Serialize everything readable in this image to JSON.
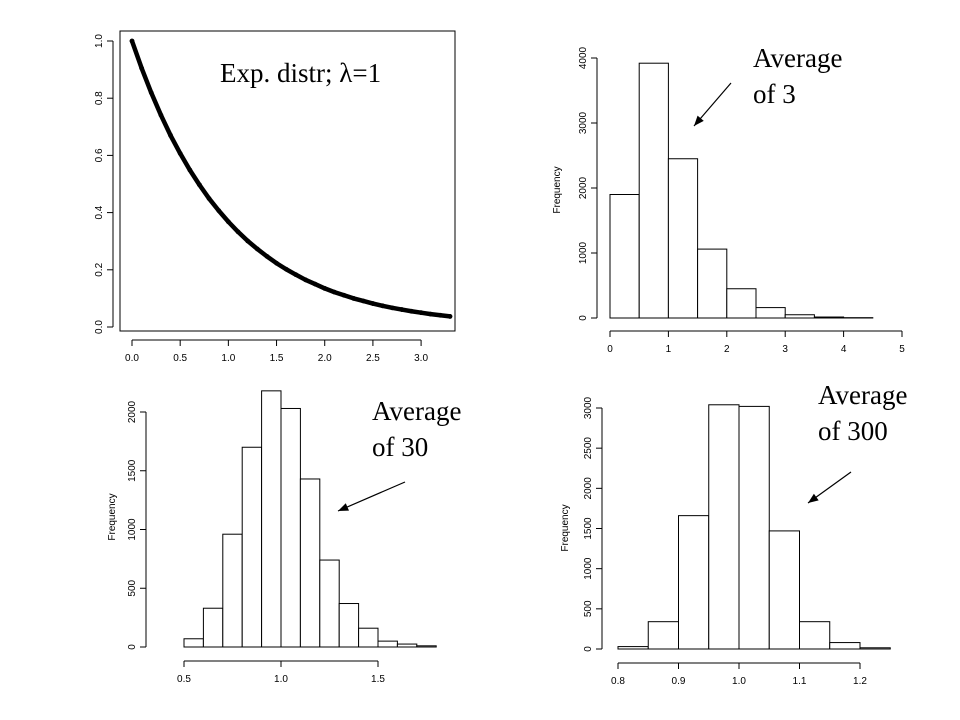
{
  "chart_data": [
    {
      "type": "line",
      "title": "Exp. distr; λ=1",
      "x": [
        0.0,
        0.1,
        0.2,
        0.3,
        0.4,
        0.5,
        0.6,
        0.7,
        0.8,
        0.9,
        1.0,
        1.1,
        1.2,
        1.3,
        1.4,
        1.5,
        1.6,
        1.7,
        1.8,
        1.9,
        2.0,
        2.1,
        2.2,
        2.3,
        2.4,
        2.5,
        2.6,
        2.7,
        2.8,
        2.9,
        3.0,
        3.1,
        3.2,
        3.3
      ],
      "y": [
        1.0,
        0.905,
        0.819,
        0.741,
        0.67,
        0.607,
        0.549,
        0.497,
        0.449,
        0.407,
        0.368,
        0.333,
        0.301,
        0.273,
        0.247,
        0.223,
        0.202,
        0.183,
        0.165,
        0.15,
        0.135,
        0.122,
        0.111,
        0.1,
        0.091,
        0.082,
        0.074,
        0.067,
        0.061,
        0.055,
        0.05,
        0.045,
        0.041,
        0.037
      ],
      "xlim": [
        -0.1,
        3.4
      ],
      "ylim": [
        0.0,
        1.0
      ],
      "xticks": [
        "0.0",
        "0.5",
        "1.0",
        "1.5",
        "2.0",
        "2.5",
        "3.0"
      ],
      "yticks": [
        "0.0",
        "0.2",
        "0.4",
        "0.6",
        "0.8",
        "1.0"
      ],
      "xlabel": "",
      "ylabel": "",
      "grid": false
    },
    {
      "type": "bar",
      "annotation": [
        "Average",
        "of 3"
      ],
      "ylabel": "Frequency",
      "bin_edges": [
        0,
        0.5,
        1.0,
        1.5,
        2.0,
        2.5,
        3.0,
        3.5,
        4.0,
        4.5
      ],
      "values": [
        1900,
        3920,
        2450,
        1060,
        450,
        160,
        50,
        15,
        5
      ],
      "xlim": [
        0,
        5
      ],
      "ylim": [
        0,
        4000
      ],
      "xticks": [
        "0",
        "1",
        "2",
        "3",
        "4",
        "5"
      ],
      "yticks": [
        "0",
        "1000",
        "2000",
        "3000",
        "4000"
      ],
      "grid": false
    },
    {
      "type": "bar",
      "annotation": [
        "Average",
        "of 30"
      ],
      "ylabel": "Frequency",
      "bin_edges": [
        0.5,
        0.6,
        0.7,
        0.8,
        0.9,
        1.0,
        1.1,
        1.2,
        1.3,
        1.4,
        1.5,
        1.6,
        1.7,
        1.8
      ],
      "values": [
        70,
        330,
        960,
        1700,
        2180,
        2030,
        1430,
        740,
        370,
        160,
        50,
        25,
        10
      ],
      "xlim": [
        0.5,
        1.5
      ],
      "ylim": [
        0,
        2000
      ],
      "xticks": [
        "0.5",
        "1.0",
        "1.5"
      ],
      "yticks": [
        "0",
        "500",
        "1000",
        "1500",
        "2000"
      ],
      "grid": false
    },
    {
      "type": "bar",
      "annotation": [
        "Average",
        "of 300"
      ],
      "ylabel": "Frequency",
      "bin_edges": [
        0.8,
        0.85,
        0.9,
        0.95,
        1.0,
        1.05,
        1.1,
        1.15,
        1.2,
        1.25
      ],
      "values": [
        30,
        340,
        1660,
        3040,
        3020,
        1470,
        340,
        80,
        15
      ],
      "xlim": [
        0.8,
        1.2
      ],
      "ylim": [
        0,
        3000
      ],
      "xticks": [
        "0.8",
        "0.9",
        "1.0",
        "1.1",
        "1.2"
      ],
      "yticks": [
        "0",
        "500",
        "1000",
        "1500",
        "2000",
        "2500",
        "3000"
      ],
      "grid": false
    }
  ]
}
